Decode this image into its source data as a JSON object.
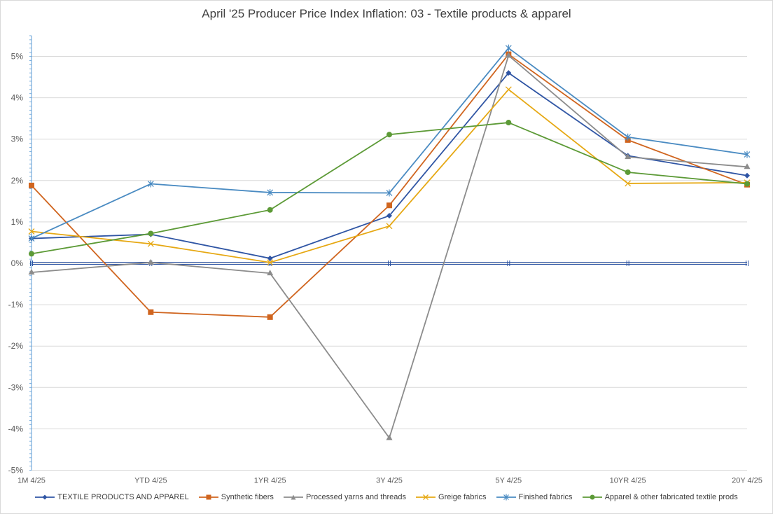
{
  "chart_data": {
    "type": "line",
    "title": "April '25 Producer Price Index Inflation: 03 - Textile products & apparel",
    "categories": [
      "1M 4/25",
      "YTD  4/25",
      "1YR 4/25",
      "3Y 4/25",
      "5Y 4/25",
      "10YR  4/25",
      "20Y 4/25"
    ],
    "ylim": [
      -5,
      5.5
    ],
    "yticks": [
      -5,
      -4,
      -3,
      -2,
      -1,
      0,
      1,
      2,
      3,
      4,
      5
    ],
    "ytick_labels": [
      "-5%",
      "-4%",
      "-3%",
      "-2%",
      "-1%",
      "0%",
      "1%",
      "2%",
      "3%",
      "4%",
      "5%"
    ],
    "grid": true,
    "legend_position": "bottom",
    "series": [
      {
        "name": "TEXTILE PRODUCTS AND APPAREL",
        "color": "#2f55a4",
        "marker": "diamond",
        "values": [
          0.6,
          0.7,
          0.12,
          1.15,
          4.6,
          2.6,
          2.12
        ]
      },
      {
        "name": "Synthetic fibers",
        "color": "#d0651f",
        "marker": "square",
        "values": [
          1.88,
          -1.18,
          -1.3,
          1.4,
          5.05,
          2.98,
          1.9
        ]
      },
      {
        "name": "Processed yarns and threads",
        "color": "#8c8c8c",
        "marker": "triangle",
        "values": [
          -0.22,
          0.02,
          -0.24,
          -4.22,
          5.02,
          2.57,
          2.33
        ]
      },
      {
        "name": "Greige fabrics",
        "color": "#e6a813",
        "marker": "x",
        "values": [
          0.77,
          0.47,
          0.02,
          0.9,
          4.2,
          1.93,
          1.95
        ]
      },
      {
        "name": "Finished fabrics",
        "color": "#4a8bc2",
        "marker": "asterisk",
        "values": [
          0.6,
          1.92,
          1.71,
          1.7,
          5.2,
          3.05,
          2.63
        ]
      },
      {
        "name": "Apparel & other fabricated textile prods",
        "color": "#5c9a36",
        "marker": "circle",
        "values": [
          0.23,
          0.72,
          1.29,
          3.11,
          3.4,
          2.2,
          1.92
        ]
      }
    ],
    "zero_line": {
      "color": "#2f55a4",
      "value": 0
    }
  }
}
